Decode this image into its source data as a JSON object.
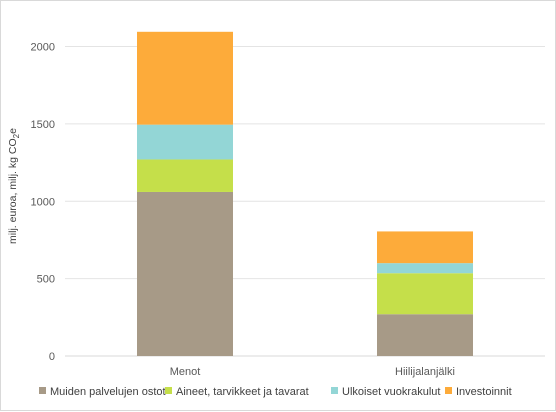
{
  "chart_data": {
    "type": "bar",
    "stacked": true,
    "title": "",
    "xlabel": "",
    "ylabel": "milj. euroa, milj. kg CO",
    "ylabel_sub": "2",
    "ylabel_suffix": "e",
    "ylim": [
      0,
      2000
    ],
    "yticks": [
      0,
      500,
      1000,
      1500,
      2000
    ],
    "grid": true,
    "legend_position": "bottom",
    "categories": [
      "Menot",
      "Hiilijalanjälki"
    ],
    "series": [
      {
        "name": "Muiden palvelujen ostot",
        "color": "#a79a87",
        "values": [
          1060,
          270
        ]
      },
      {
        "name": "Aineet, tarvikkeet ja tavarat",
        "color": "#c5df4a",
        "values": [
          210,
          265
        ]
      },
      {
        "name": "Ulkoiset vuokrakulut",
        "color": "#93d6d6",
        "values": [
          225,
          65
        ]
      },
      {
        "name": "Investoinnit",
        "color": "#fdab3a",
        "values": [
          600,
          205
        ]
      }
    ]
  }
}
